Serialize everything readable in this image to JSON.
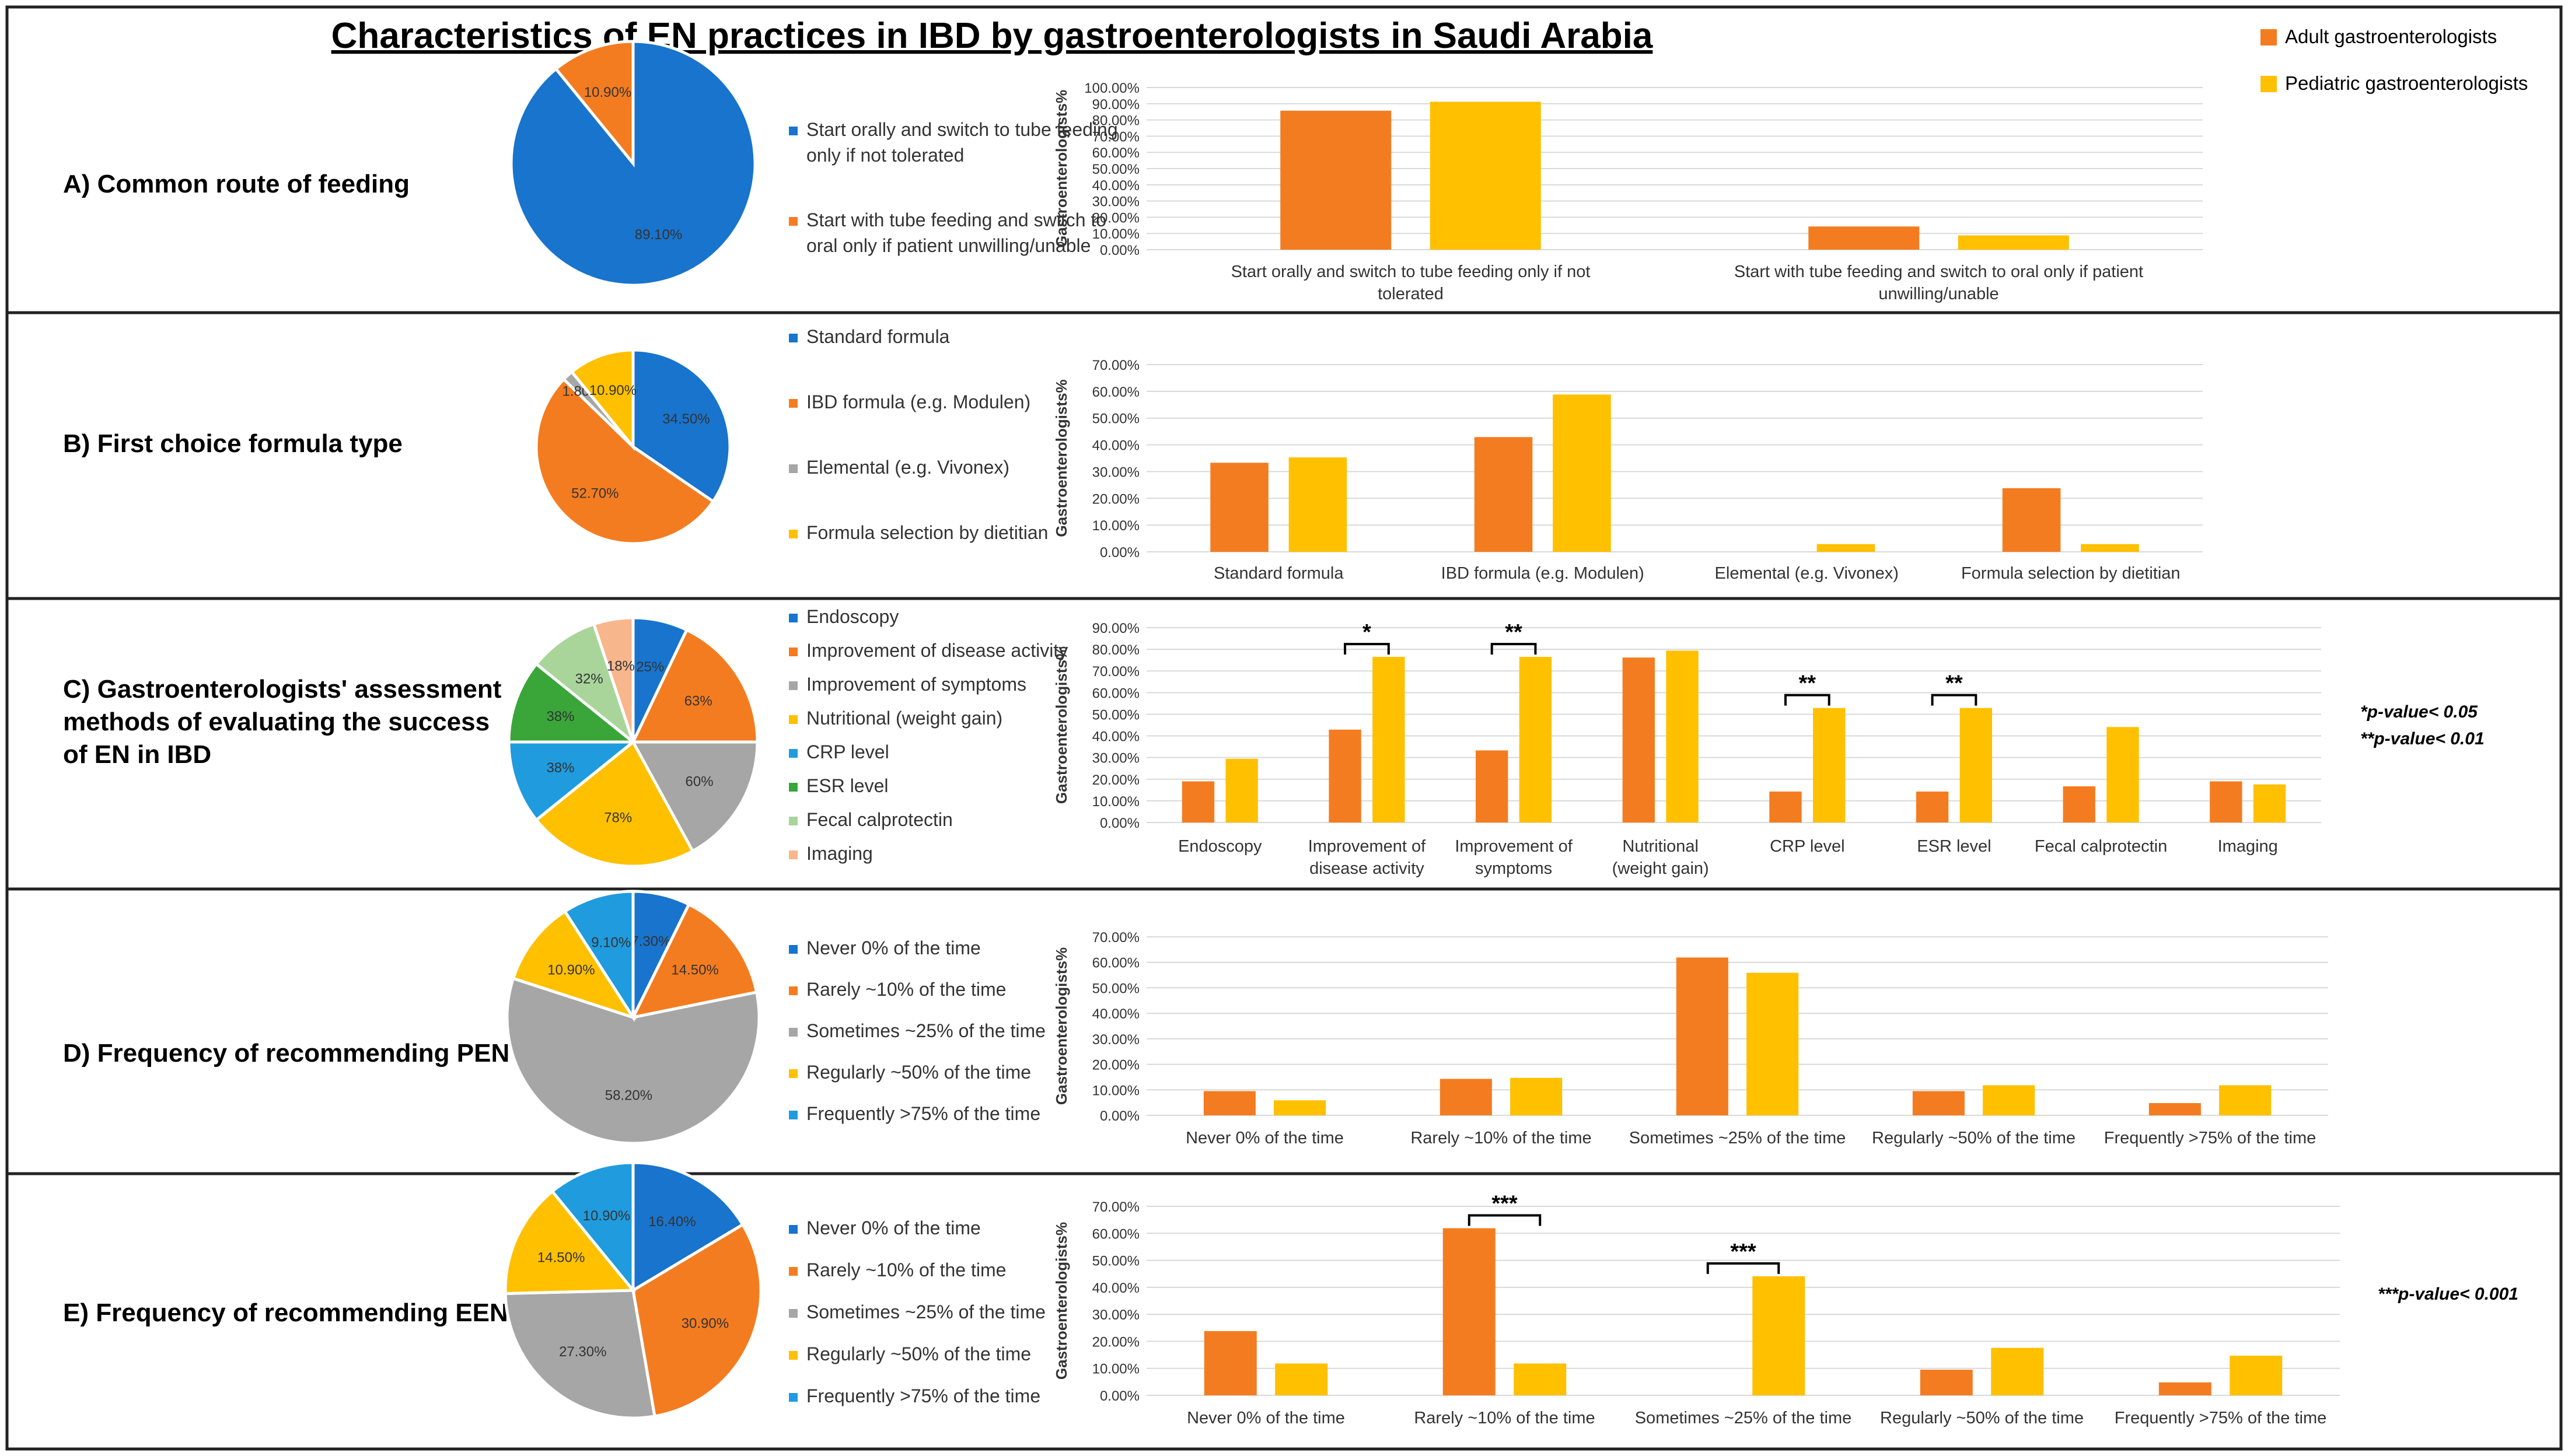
{
  "title": "Characteristics of EN practices in IBD by gastroenterologists in Saudi Arabia",
  "legend": [
    {
      "label": "Adult gastroenterologists",
      "color": "#F47C20"
    },
    {
      "label": "Pediatric gastroenterologists",
      "color": "#FFC000"
    }
  ],
  "colors": {
    "blue": "#1874CD",
    "orange": "#F47C20",
    "gray": "#A6A6A6",
    "yellow": "#FFC000",
    "lightblue": "#1F9BDE",
    "green": "#3AA63A",
    "lightgreen": "#A9D59B",
    "peach": "#F8B68C",
    "border": "#222222",
    "grid": "#D9D9D9"
  },
  "ylabel": "Gastroenterologists%",
  "chart_data": [
    {
      "panel": "A",
      "label": "A) Common route of feeding",
      "pie": {
        "type": "pie",
        "slices": [
          {
            "label": "Start orally and switch to tube feeding only if not tolerated",
            "value": 89.1,
            "text": "89.10%",
            "color": "#1874CD"
          },
          {
            "label": "Start with tube feeding and switch to oral only if patient unwilling/unable",
            "value": 10.9,
            "text": "10.90%",
            "color": "#F47C20"
          }
        ]
      },
      "legend_items": [
        "Start orally and switch to tube feeding only if not tolerated",
        "Start with tube feeding and switch to oral only if patient unwilling/unable"
      ],
      "bar": {
        "type": "bar",
        "ylabel": "Gastroenterologists%",
        "ylim": [
          0,
          100
        ],
        "yticks": [
          "0.00%",
          "10.00%",
          "20.00%",
          "30.00%",
          "40.00%",
          "50.00%",
          "60.00%",
          "70.00%",
          "80.00%",
          "90.00%",
          "100.00%"
        ],
        "categories": [
          "Start orally and switch to tube feeding only if not tolerated",
          "Start with tube feeding and switch to oral only if patient unwilling/unable"
        ],
        "series": [
          {
            "name": "Adult gastroenterologists",
            "values": [
              85.7,
              14.3
            ]
          },
          {
            "name": "Pediatric gastroenterologists",
            "values": [
              91.2,
              8.8
            ]
          }
        ],
        "annotations": []
      }
    },
    {
      "panel": "B",
      "label": "B) First choice formula type",
      "pie": {
        "type": "pie",
        "slices": [
          {
            "label": "Standard formula",
            "value": 34.5,
            "text": "34.50%",
            "color": "#1874CD"
          },
          {
            "label": "IBD formula (e.g. Modulen)",
            "value": 52.7,
            "text": "52.70%",
            "color": "#F47C20"
          },
          {
            "label": "Elemental (e.g. Vivonex)",
            "value": 1.8,
            "text": "1.80%",
            "color": "#A6A6A6"
          },
          {
            "label": "Formula selection by dietitian",
            "value": 10.9,
            "text": "10.90%",
            "color": "#FFC000"
          }
        ]
      },
      "legend_items": [
        "Standard formula",
        "IBD formula (e.g. Modulen)",
        "Elemental (e.g. Vivonex)",
        "Formula selection by dietitian"
      ],
      "bar": {
        "type": "bar",
        "ylabel": "Gastroenterologists%",
        "ylim": [
          0,
          70
        ],
        "yticks": [
          "0.00%",
          "10.00%",
          "20.00%",
          "30.00%",
          "40.00%",
          "50.00%",
          "60.00%",
          "70.00%"
        ],
        "categories": [
          "Standard formula",
          "IBD formula (e.g. Modulen)",
          "Elemental (e.g. Vivonex)",
          "Formula selection by dietitian"
        ],
        "series": [
          {
            "name": "Adult gastroenterologists",
            "values": [
              33.3,
              42.9,
              0,
              23.8
            ]
          },
          {
            "name": "Pediatric gastroenterologists",
            "values": [
              35.3,
              58.8,
              2.9,
              2.9
            ]
          }
        ],
        "annotations": []
      }
    },
    {
      "panel": "C",
      "label": "C) Gastroenterologists' assessment methods of evaluating the success of EN in IBD",
      "pie": {
        "type": "pie",
        "slices": [
          {
            "label": "Endoscopy",
            "value": 25,
            "text": "25%",
            "color": "#1874CD"
          },
          {
            "label": "Improvement of disease activity",
            "value": 63,
            "text": "63%",
            "color": "#F47C20"
          },
          {
            "label": "Improvement of symptoms",
            "value": 60,
            "text": "60%",
            "color": "#A6A6A6"
          },
          {
            "label": "Nutritional (weight gain)",
            "value": 78,
            "text": "78%",
            "color": "#FFC000"
          },
          {
            "label": "CRP level",
            "value": 38,
            "text": "38%",
            "color": "#1F9BDE"
          },
          {
            "label": "ESR level",
            "value": 38,
            "text": "38%",
            "color": "#3AA63A"
          },
          {
            "label": "Fecal calprotectin",
            "value": 32,
            "text": "32%",
            "color": "#A9D59B"
          },
          {
            "label": "Imaging",
            "value": 18,
            "text": "18%",
            "color": "#F8B68C"
          }
        ]
      },
      "legend_items": [
        "Endoscopy",
        "Improvement of disease activity",
        "Improvement of symptoms",
        "Nutritional (weight gain)",
        "CRP level",
        "ESR level",
        "Fecal calprotectin",
        "Imaging"
      ],
      "bar": {
        "type": "bar",
        "ylabel": "Gastroenterologists%",
        "ylim": [
          0,
          90
        ],
        "yticks": [
          "0.00%",
          "10.00%",
          "20.00%",
          "30.00%",
          "40.00%",
          "50.00%",
          "60.00%",
          "70.00%",
          "80.00%",
          "90.00%"
        ],
        "categories": [
          "Endoscopy",
          "Improvement of disease activity",
          "Improvement of symptoms",
          "Nutritional (weight gain)",
          "CRP level",
          "ESR level",
          "Fecal calprotectin",
          "Imaging"
        ],
        "category_lines": [
          [
            "Endoscopy"
          ],
          [
            "Improvement of",
            "disease activity"
          ],
          [
            "Improvement of",
            "symptoms"
          ],
          [
            "Nutritional",
            "(weight gain)"
          ],
          [
            "CRP level"
          ],
          [
            "ESR level"
          ],
          [
            "Fecal calprotectin"
          ],
          [
            "Imaging"
          ]
        ],
        "series": [
          {
            "name": "Adult gastroenterologists",
            "values": [
              19.0,
              42.9,
              33.3,
              76.2,
              14.3,
              14.3,
              16.7,
              19.0
            ]
          },
          {
            "name": "Pediatric gastroenterologists",
            "values": [
              29.4,
              76.5,
              76.5,
              79.4,
              52.9,
              52.9,
              44.1,
              17.6
            ]
          }
        ],
        "annotations": [
          {
            "category": 1,
            "text": "*"
          },
          {
            "category": 2,
            "text": "**"
          },
          {
            "category": 4,
            "text": "**"
          },
          {
            "category": 5,
            "text": "**"
          }
        ]
      },
      "notes": [
        "*p-value< 0.05",
        "**p-value< 0.01"
      ]
    },
    {
      "panel": "D",
      "label": "D) Frequency of recommending PEN",
      "pie": {
        "type": "pie",
        "slices": [
          {
            "label": "Never 0% of the time",
            "value": 7.3,
            "text": "7.30%",
            "color": "#1874CD"
          },
          {
            "label": "Rarely ~10% of the time",
            "value": 14.5,
            "text": "14.50%",
            "color": "#F47C20"
          },
          {
            "label": "Sometimes ~25% of the time",
            "value": 58.2,
            "text": "58.20%",
            "color": "#A6A6A6"
          },
          {
            "label": "Regularly ~50% of the time",
            "value": 10.9,
            "text": "10.90%",
            "color": "#FFC000"
          },
          {
            "label": "Frequently >75% of the time",
            "value": 9.1,
            "text": "9.10%",
            "color": "#1F9BDE"
          }
        ]
      },
      "legend_items": [
        "Never 0% of the time",
        "Rarely ~10% of the time",
        "Sometimes ~25% of the time",
        "Regularly ~50% of the time",
        "Frequently >75% of the time"
      ],
      "bar": {
        "type": "bar",
        "ylabel": "Gastroenterologists%",
        "ylim": [
          0,
          70
        ],
        "yticks": [
          "0.00%",
          "10.00%",
          "20.00%",
          "30.00%",
          "40.00%",
          "50.00%",
          "60.00%",
          "70.00%"
        ],
        "categories": [
          "Never 0% of the time",
          "Rarely ~10% of the time",
          "Sometimes ~25% of the time",
          "Regularly ~50% of the time",
          "Frequently >75% of the time"
        ],
        "series": [
          {
            "name": "Adult gastroenterologists",
            "values": [
              9.5,
              14.3,
              61.9,
              9.5,
              4.8
            ]
          },
          {
            "name": "Pediatric gastroenterologists",
            "values": [
              5.9,
              14.7,
              55.9,
              11.8,
              11.8
            ]
          }
        ],
        "annotations": []
      }
    },
    {
      "panel": "E",
      "label": "E) Frequency of recommending EEN",
      "pie": {
        "type": "pie",
        "slices": [
          {
            "label": "Never 0% of the time",
            "value": 16.4,
            "text": "16.40%",
            "color": "#1874CD"
          },
          {
            "label": "Rarely ~10% of the time",
            "value": 30.9,
            "text": "30.90%",
            "color": "#F47C20"
          },
          {
            "label": "Sometimes ~25% of the time",
            "value": 27.3,
            "text": "27.30%",
            "color": "#A6A6A6"
          },
          {
            "label": "Regularly ~50% of the time",
            "value": 14.5,
            "text": "14.50%",
            "color": "#FFC000"
          },
          {
            "label": "Frequently >75% of the time",
            "value": 10.9,
            "text": "10.90%",
            "color": "#1F9BDE"
          }
        ]
      },
      "legend_items": [
        "Never 0% of the time",
        "Rarely ~10% of the time",
        "Sometimes ~25% of the time",
        "Regularly ~50% of the time",
        "Frequently >75% of the time"
      ],
      "bar": {
        "type": "bar",
        "ylabel": "Gastroenterologists%",
        "ylim": [
          0,
          70
        ],
        "yticks": [
          "0.00%",
          "10.00%",
          "20.00%",
          "30.00%",
          "40.00%",
          "50.00%",
          "60.00%",
          "70.00%"
        ],
        "categories": [
          "Never 0% of the time",
          "Rarely ~10% of the time",
          "Sometimes ~25% of the time",
          "Regularly ~50% of the time",
          "Frequently >75% of the time"
        ],
        "series": [
          {
            "name": "Adult gastroenterologists",
            "values": [
              23.8,
              61.9,
              0,
              9.5,
              4.8
            ]
          },
          {
            "name": "Pediatric gastroenterologists",
            "values": [
              11.8,
              11.8,
              44.1,
              17.6,
              14.7
            ]
          }
        ],
        "annotations": [
          {
            "category": 1,
            "text": "***"
          },
          {
            "category": 2,
            "text": "***"
          }
        ]
      },
      "notes": [
        "***p-value< 0.001"
      ]
    }
  ]
}
